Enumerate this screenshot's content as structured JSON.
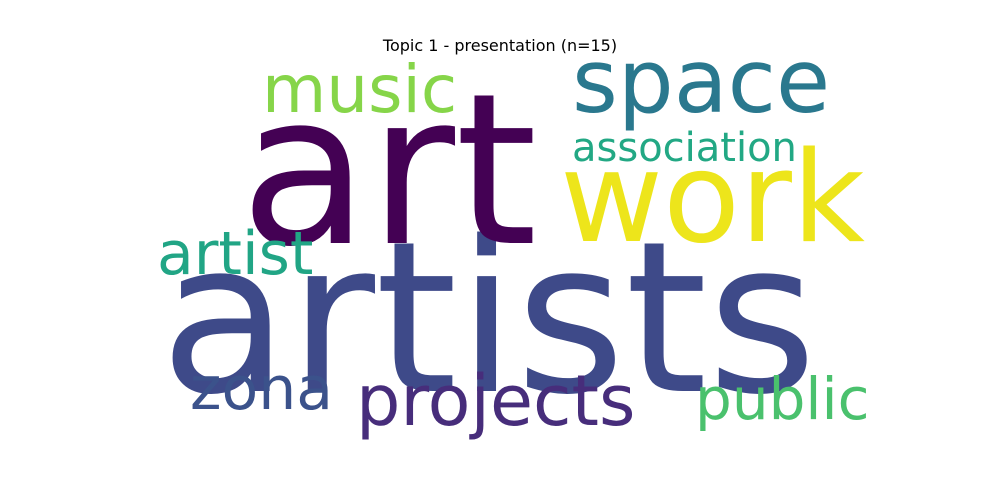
{
  "title": "Topic 1 - presentation (n=15)",
  "words": {
    "art": {
      "text": "art",
      "color": "#440154"
    },
    "artists": {
      "text": "artists",
      "color": "#3e4a89"
    },
    "work": {
      "text": "work",
      "color": "#ede51b"
    },
    "space": {
      "text": "space",
      "color": "#2a788e"
    },
    "music": {
      "text": "music",
      "color": "#86d549"
    },
    "association": {
      "text": "association",
      "color": "#22a884"
    },
    "artist": {
      "text": "artist",
      "color": "#21a585"
    },
    "zona": {
      "text": "zona",
      "color": "#3b528b"
    },
    "projects": {
      "text": "projects",
      "color": "#472d7b"
    },
    "public": {
      "text": "public",
      "color": "#4ac16d"
    }
  }
}
